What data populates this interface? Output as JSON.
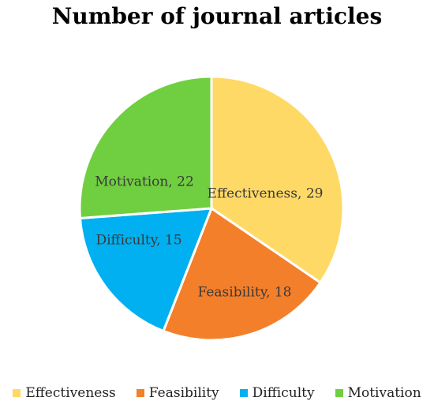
{
  "chart_data": {
    "type": "pie",
    "title": "Number of journal articles",
    "categories": [
      "Effectiveness",
      "Feasibility",
      "Difficulty",
      "Motivation"
    ],
    "values": [
      29,
      18,
      15,
      22
    ],
    "slice_labels": [
      "Effectiveness, 29",
      "Feasibility, 18",
      "Difficulty, 15",
      "Motivation, 22"
    ],
    "colors": [
      "#FFD966",
      "#F47F2A",
      "#00B0F0",
      "#70CF40"
    ],
    "start_angle": "12 o'clock",
    "direction": "clockwise",
    "legend_position": "bottom"
  }
}
